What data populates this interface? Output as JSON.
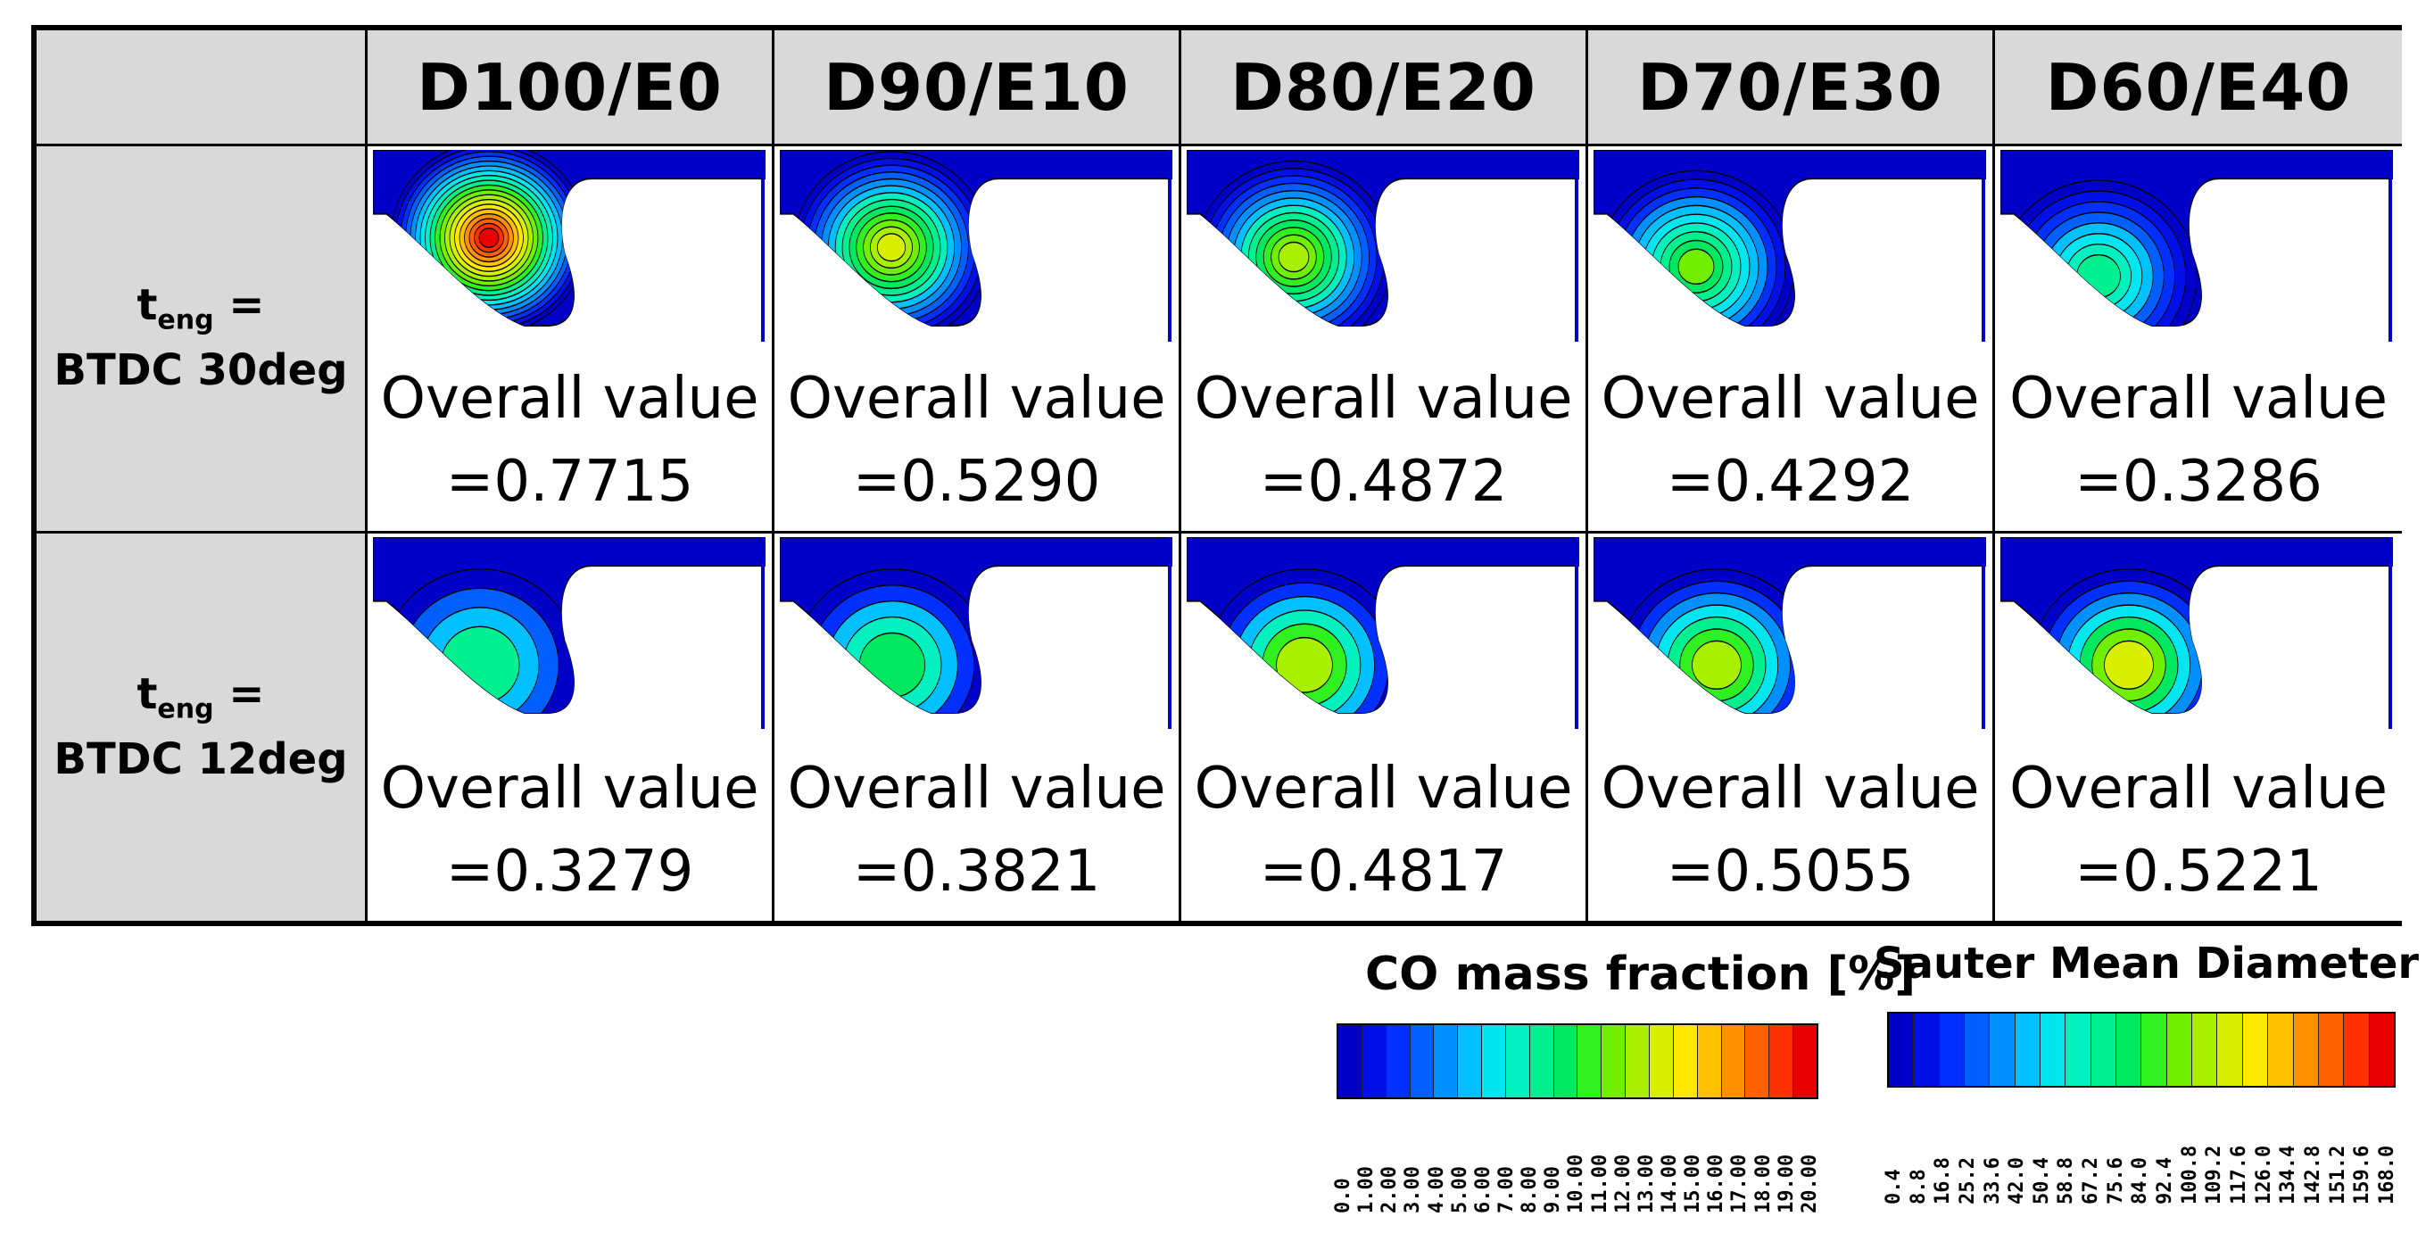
{
  "header": {
    "corner": "",
    "columns": [
      "D100/E0",
      "D90/E10",
      "D80/E20",
      "D70/E30",
      "D60/E40"
    ]
  },
  "rows": [
    {
      "t_main": "t",
      "t_sub": "eng",
      "t_eq": " =",
      "timing": "BTDC 30deg",
      "values": [
        "=0.7715",
        "=0.5290",
        "=0.4872",
        "=0.4292",
        "=0.3286"
      ]
    },
    {
      "t_main": "t",
      "t_sub": "eng",
      "t_eq": " =",
      "timing": "BTDC 12deg",
      "values": [
        "=0.3279",
        "=0.3821",
        "=0.4817",
        "=0.5055",
        "=0.5221"
      ]
    }
  ],
  "overall_label": "Overall value",
  "legends": {
    "co": {
      "title": "CO mass fraction [%]",
      "ticks": [
        "0.0",
        "1.00",
        "2.00",
        "3.00",
        "4.00",
        "5.00",
        "6.00",
        "7.00",
        "8.00",
        "9.00",
        "10.00",
        "11.00",
        "12.00",
        "13.00",
        "14.00",
        "15.00",
        "16.00",
        "17.00",
        "18.00",
        "19.00",
        "20.00"
      ]
    },
    "smd": {
      "title": "Sauter Mean Diameter [µm]",
      "ticks": [
        "0.4",
        "8.8",
        "16.8",
        "25.2",
        "33.6",
        "42.0",
        "50.4",
        "58.8",
        "67.2",
        "75.6",
        "84.0",
        "92.4",
        "100.8",
        "109.2",
        "117.6",
        "126.0",
        "134.4",
        "142.8",
        "151.2",
        "159.6",
        "168.0"
      ]
    }
  },
  "colors": {
    "grid_header_bg": "#d9d9d9",
    "contour_scale": [
      "#0000c8",
      "#0010e6",
      "#0030ff",
      "#0060ff",
      "#0090ff",
      "#00c0ff",
      "#00e6f0",
      "#00f0c0",
      "#00f090",
      "#00e860",
      "#30f020",
      "#70f000",
      "#a8f000",
      "#d8f000",
      "#ffe800",
      "#ffc000",
      "#ff9000",
      "#ff6000",
      "#ff3000",
      "#e80000"
    ]
  },
  "icons": {
    "simulation_panel": "cfd-contour-plot"
  }
}
